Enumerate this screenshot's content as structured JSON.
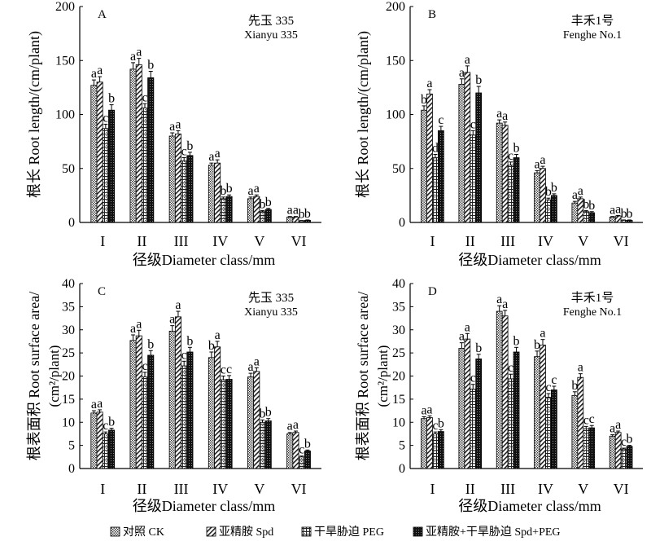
{
  "chart_data": [
    {
      "type": "bar",
      "panel": "A",
      "variety_cn": "先玉 335",
      "variety_en": "Xianyu 335",
      "categories": [
        "I",
        "II",
        "III",
        "IV",
        "V",
        "VI"
      ],
      "ylabel_cn": "根长",
      "ylabel_en": "Root length/(cm/plant)",
      "xlabel_cn": "径级",
      "xlabel_en": "Diameter class/mm",
      "ylim": [
        0,
        200
      ],
      "yticks": [
        0,
        50,
        100,
        150,
        200
      ],
      "series": [
        {
          "name": "CK",
          "values": [
            127,
            142,
            80,
            53,
            22,
            5
          ],
          "errors": [
            5,
            6,
            3,
            2,
            1.5,
            0.5
          ],
          "labels": [
            "a",
            "a",
            "a",
            "a",
            "a",
            "a"
          ]
        },
        {
          "name": "Spd",
          "values": [
            130,
            146,
            82,
            55,
            24,
            5
          ],
          "errors": [
            5,
            6,
            3,
            3,
            1.5,
            0.5
          ],
          "labels": [
            "a",
            "a",
            "a",
            "a",
            "a",
            "a"
          ]
        },
        {
          "name": "PEG",
          "values": [
            87,
            106,
            57,
            22,
            10,
            1.5
          ],
          "errors": [
            4,
            4,
            3,
            1.5,
            1,
            0.3
          ],
          "labels": [
            "c",
            "c",
            "c",
            "b",
            "b",
            "b"
          ]
        },
        {
          "name": "Spd+PEG",
          "values": [
            104,
            134,
            62,
            24,
            12,
            2
          ],
          "errors": [
            5,
            6,
            3,
            1.5,
            1,
            0.3
          ],
          "labels": [
            "b",
            "b",
            "b",
            "b",
            "b",
            "b"
          ]
        }
      ]
    },
    {
      "type": "bar",
      "panel": "B",
      "variety_cn": "丰禾1号",
      "variety_en": "Fenghe No.1",
      "categories": [
        "I",
        "II",
        "III",
        "IV",
        "V",
        "VI"
      ],
      "ylabel_cn": "根长",
      "ylabel_en": "Root length/(cm/plant)",
      "xlabel_cn": "径级",
      "xlabel_en": "Diameter class/mm",
      "ylim": [
        0,
        200
      ],
      "yticks": [
        0,
        50,
        100,
        150,
        200
      ],
      "series": [
        {
          "name": "CK",
          "values": [
            104,
            128,
            92,
            46,
            18,
            5
          ],
          "errors": [
            4,
            5,
            3,
            2,
            1.5,
            0.5
          ],
          "labels": [
            "b",
            "a",
            "a",
            "a",
            "a",
            "a"
          ]
        },
        {
          "name": "Spd",
          "values": [
            119,
            139,
            90,
            50,
            22,
            6
          ],
          "errors": [
            4,
            6,
            3,
            2,
            1.5,
            0.5
          ],
          "labels": [
            "a",
            "a",
            "a",
            "a",
            "a",
            "a"
          ]
        },
        {
          "name": "PEG",
          "values": [
            60,
            81,
            53,
            21,
            10,
            2
          ],
          "errors": [
            3,
            4,
            3,
            1.5,
            1,
            0.3
          ],
          "labels": [
            "d",
            "c",
            "c",
            "b",
            "b",
            "b"
          ]
        },
        {
          "name": "Spd+PEG",
          "values": [
            85,
            120,
            60,
            25,
            9,
            2
          ],
          "errors": [
            4,
            6,
            3,
            1.5,
            1,
            0.3
          ],
          "labels": [
            "c",
            "b",
            "b",
            "b",
            "b",
            "b"
          ]
        }
      ]
    },
    {
      "type": "bar",
      "panel": "C",
      "variety_cn": "先玉 335",
      "variety_en": "Xianyu 335",
      "categories": [
        "I",
        "II",
        "III",
        "IV",
        "V",
        "VI"
      ],
      "ylabel_cn": "根表面积",
      "ylabel_en": "Root surface area/",
      "ylabel_unit": "(cm²/plant)",
      "xlabel_cn": "径级",
      "xlabel_en": "Diameter class/mm",
      "ylim": [
        0,
        40
      ],
      "yticks": [
        0,
        5,
        10,
        15,
        20,
        25,
        30,
        35,
        40
      ],
      "series": [
        {
          "name": "CK",
          "values": [
            12,
            27.7,
            29.7,
            24,
            19.8,
            7.5
          ],
          "errors": [
            0.5,
            1.2,
            1.2,
            1.2,
            0.8,
            0.3
          ],
          "labels": [
            "a",
            "a",
            "a",
            "b",
            "a",
            "a"
          ]
        },
        {
          "name": "Spd",
          "values": [
            12.2,
            28.7,
            32.8,
            26.3,
            21,
            7.8
          ],
          "errors": [
            0.5,
            1.2,
            1.2,
            1.2,
            0.8,
            0.3
          ],
          "labels": [
            "a",
            "a",
            "a",
            "a",
            "a",
            "a"
          ]
        },
        {
          "name": "PEG",
          "values": [
            7.5,
            19.8,
            22.2,
            19.2,
            10,
            2.5
          ],
          "errors": [
            0.4,
            1,
            1,
            0.8,
            0.5,
            0.2
          ],
          "labels": [
            "c",
            "c",
            "c",
            "c",
            "b",
            "c"
          ]
        },
        {
          "name": "Spd+PEG",
          "values": [
            8.3,
            24.5,
            25.2,
            19.3,
            10.3,
            3.8
          ],
          "errors": [
            0.4,
            1,
            1,
            0.8,
            0.5,
            0.2
          ],
          "labels": [
            "b",
            "b",
            "b",
            "c",
            "b",
            "b"
          ]
        }
      ]
    },
    {
      "type": "bar",
      "panel": "D",
      "variety_cn": "丰禾1号",
      "variety_en": "Fenghe No.1",
      "categories": [
        "I",
        "II",
        "III",
        "IV",
        "V",
        "VI"
      ],
      "ylabel_cn": "根表面积",
      "ylabel_en": "Root surface area/",
      "ylabel_unit": "(cm²/plant)",
      "xlabel_cn": "径级",
      "xlabel_en": "Diameter class/mm",
      "ylim": [
        0,
        40
      ],
      "yticks": [
        0,
        5,
        10,
        15,
        20,
        25,
        30,
        35,
        40
      ],
      "series": [
        {
          "name": "CK",
          "values": [
            10.8,
            26,
            34,
            24.2,
            15.8,
            7
          ],
          "errors": [
            0.4,
            1.2,
            1.2,
            1.2,
            0.8,
            0.3
          ],
          "labels": [
            "a",
            "a",
            "a",
            "b",
            "b",
            "a"
          ]
        },
        {
          "name": "Spd",
          "values": [
            11,
            28,
            33,
            26.7,
            19.7,
            7.8
          ],
          "errors": [
            0.4,
            1.2,
            1.2,
            1.2,
            0.8,
            0.3
          ],
          "labels": [
            "a",
            "a",
            "a",
            "a",
            "a",
            "a"
          ]
        },
        {
          "name": "PEG",
          "values": [
            7.5,
            17.2,
            19.4,
            15.4,
            8.6,
            4.2
          ],
          "errors": [
            0.4,
            1,
            1,
            0.8,
            0.5,
            0.2
          ],
          "labels": [
            "c",
            "c",
            "c",
            "c",
            "c",
            "c"
          ]
        },
        {
          "name": "Spd+PEG",
          "values": [
            8,
            23.7,
            25.2,
            17,
            8.8,
            4.8
          ],
          "errors": [
            0.4,
            1,
            1,
            0.8,
            0.5,
            0.2
          ],
          "labels": [
            "b",
            "b",
            "b",
            "c",
            "c",
            "b"
          ]
        }
      ]
    }
  ],
  "legend": [
    {
      "series": "CK",
      "label": "对照 CK"
    },
    {
      "series": "Spd",
      "label": "亚精胺 Spd"
    },
    {
      "series": "PEG",
      "label": "干旱胁迫 PEG"
    },
    {
      "series": "Spd+PEG",
      "label": "亚精胺+干旱胁迫 Spd+PEG"
    }
  ]
}
